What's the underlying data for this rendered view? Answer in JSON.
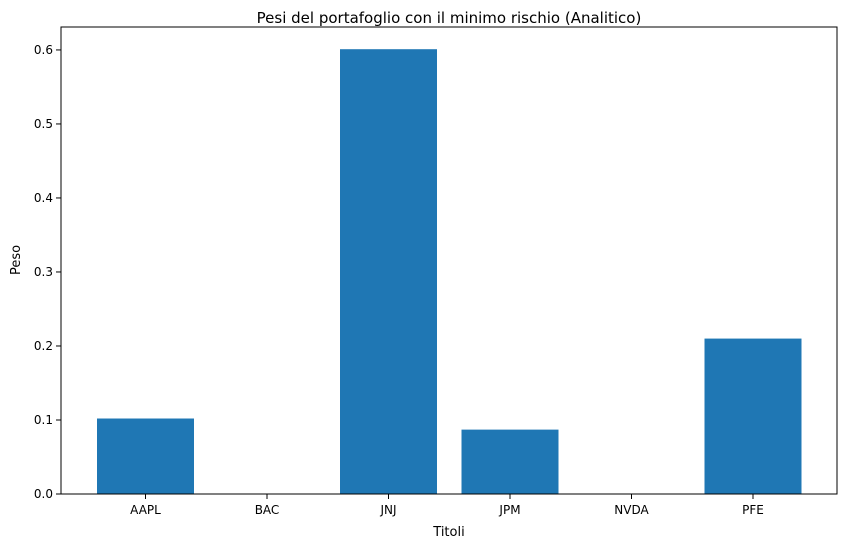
{
  "chart_data": {
    "type": "bar",
    "title": "Pesi del portafoglio con il minimo rischio (Analitico)",
    "xlabel": "Titoli",
    "ylabel": "Peso",
    "categories": [
      "AAPL",
      "BAC",
      "JNJ",
      "JPM",
      "NVDA",
      "PFE"
    ],
    "values": [
      0.102,
      0.0,
      0.601,
      0.087,
      0.0,
      0.21
    ],
    "ylim": [
      0,
      0.631
    ],
    "yticks": [
      0.0,
      0.1,
      0.2,
      0.3,
      0.4,
      0.5,
      0.6
    ],
    "ytick_labels": [
      "0.0",
      "0.1",
      "0.2",
      "0.3",
      "0.4",
      "0.5",
      "0.6"
    ],
    "grid": false,
    "bar_color": "#1f77b4"
  }
}
